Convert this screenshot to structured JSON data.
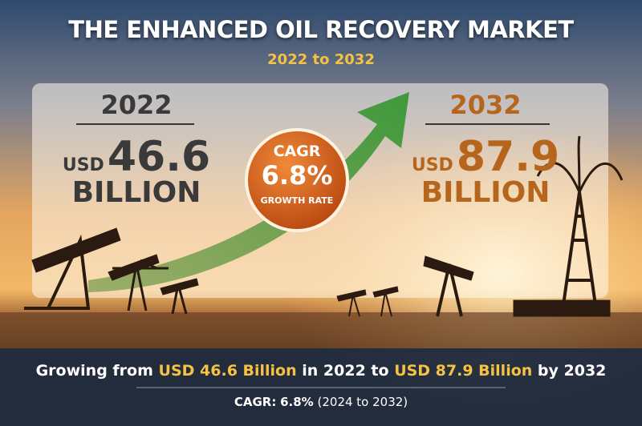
{
  "header": {
    "title": "THE ENHANCED OIL RECOVERY MARKET",
    "subtitle": "2022 to 2032"
  },
  "start": {
    "year": "2022",
    "currency": "USD",
    "amount": "46.6",
    "unit": "BILLION"
  },
  "badge": {
    "label": "CAGR",
    "rate": "6.8%",
    "caption": "GROWTH RATE"
  },
  "end": {
    "year": "2032",
    "currency": "USD",
    "amount": "87.9",
    "unit": "BILLION"
  },
  "footer": {
    "summary": [
      "Growing from",
      "USD 46.6 Billion",
      "in 2022 to",
      "USD 87.9 Billion",
      "by 2032"
    ],
    "cagr_label": "CAGR:",
    "cagr_value": "6.8%",
    "cagr_period": "(2024 to 2032)"
  }
}
